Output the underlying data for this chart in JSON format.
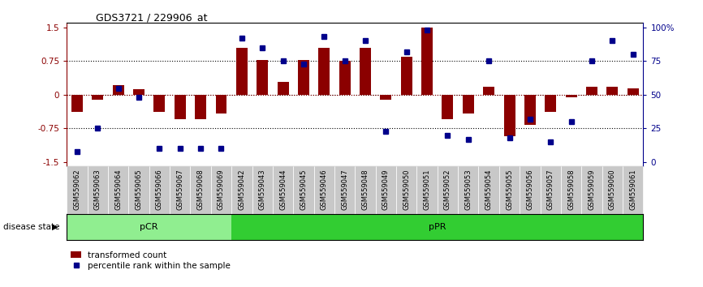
{
  "title": "GDS3721 / 229906_at",
  "samples": [
    "GSM559062",
    "GSM559063",
    "GSM559064",
    "GSM559065",
    "GSM559066",
    "GSM559067",
    "GSM559068",
    "GSM559069",
    "GSM559042",
    "GSM559043",
    "GSM559044",
    "GSM559045",
    "GSM559046",
    "GSM559047",
    "GSM559048",
    "GSM559049",
    "GSM559050",
    "GSM559051",
    "GSM559052",
    "GSM559053",
    "GSM559054",
    "GSM559055",
    "GSM559056",
    "GSM559057",
    "GSM559058",
    "GSM559059",
    "GSM559060",
    "GSM559061"
  ],
  "bar_values": [
    -0.38,
    -0.12,
    0.22,
    0.12,
    -0.38,
    -0.55,
    -0.55,
    -0.42,
    1.05,
    0.78,
    0.28,
    0.78,
    1.05,
    0.75,
    1.05,
    -0.12,
    0.85,
    1.5,
    -0.55,
    -0.42,
    0.18,
    -0.92,
    -0.68,
    -0.38,
    -0.05,
    0.18,
    0.18,
    0.15
  ],
  "percentile_values": [
    8,
    25,
    55,
    48,
    10,
    10,
    10,
    10,
    92,
    85,
    75,
    73,
    93,
    75,
    90,
    23,
    82,
    98,
    20,
    17,
    75,
    18,
    32,
    15,
    30,
    75,
    90,
    80
  ],
  "pcr_count": 8,
  "ppr_count": 20,
  "ylim": [
    -1.6,
    1.6
  ],
  "y_left_ticks": [
    1.5,
    0.75,
    0.0,
    -0.75,
    -1.5
  ],
  "y_right_ticks": [
    100,
    75,
    50,
    25,
    0
  ],
  "dotted_lines": [
    0.75,
    0.0,
    -0.75
  ],
  "bar_color": "#8B0000",
  "dot_color": "#00008B",
  "pcr_color": "#90EE90",
  "ppr_color": "#32CD32",
  "background_color": "#FFFFFF",
  "legend_bar_label": "transformed count",
  "legend_dot_label": "percentile rank within the sample",
  "xlabel_left": "disease state"
}
